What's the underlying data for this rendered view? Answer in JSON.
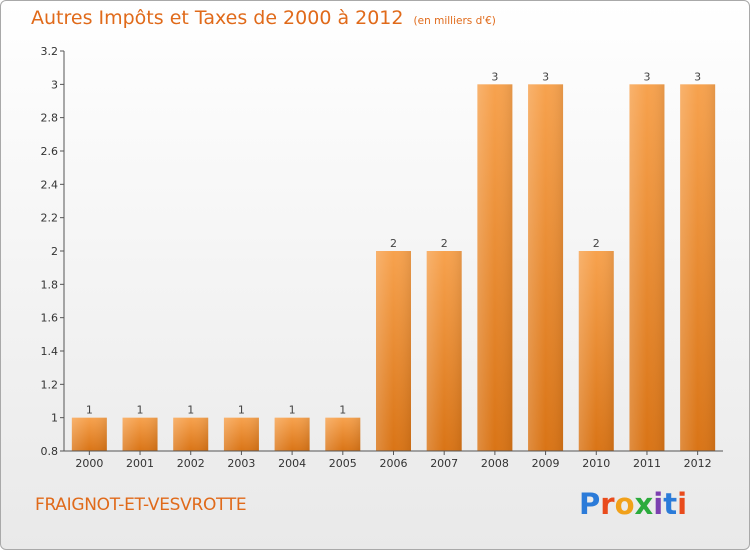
{
  "header": {
    "title": "Autres Impôts et Taxes de 2000 à 2012",
    "subtitle": "(en milliers d'€)"
  },
  "footer": {
    "commune": "FRAIGNOT-ET-VESVROTTE",
    "brand_letters": [
      "P",
      "r",
      "o",
      "x",
      "i",
      "t",
      "i"
    ]
  },
  "colors": {
    "bar_light": "#f7a24e",
    "bar_dark": "#d97416",
    "title": "#e06a1a",
    "axis": "#555555"
  },
  "chart_data": {
    "type": "bar",
    "title": "Autres Impôts et Taxes de 2000 à 2012",
    "subtitle": "(en milliers d'€)",
    "categories": [
      "2000",
      "2001",
      "2002",
      "2003",
      "2004",
      "2005",
      "2006",
      "2007",
      "2008",
      "2009",
      "2010",
      "2011",
      "2012"
    ],
    "values": [
      1,
      1,
      1,
      1,
      1,
      1,
      2,
      2,
      3,
      3,
      2,
      3,
      3
    ],
    "data_labels": [
      "1",
      "1",
      "1",
      "1",
      "1",
      "1",
      "2",
      "2",
      "3",
      "3",
      "2",
      "3",
      "3"
    ],
    "value_scale": [
      1,
      1,
      1,
      1,
      1,
      1,
      2,
      2,
      3,
      3,
      2,
      3,
      3
    ],
    "y_tick_labels": [
      "0.8",
      "1",
      "1.2",
      "1.4",
      "1.6",
      "1.8",
      "2",
      "2.2",
      "2.4",
      "2.6",
      "2.8",
      "3",
      "3.2"
    ],
    "y_tick_values": [
      0.8,
      1.0,
      1.2,
      1.4,
      1.6,
      1.8,
      2.0,
      2.2,
      2.4,
      2.6,
      2.8,
      3.0,
      3.2
    ],
    "ylim": [
      0.8,
      3.2
    ],
    "xlabel": "",
    "ylabel": "",
    "grid": false,
    "legend": "none"
  }
}
